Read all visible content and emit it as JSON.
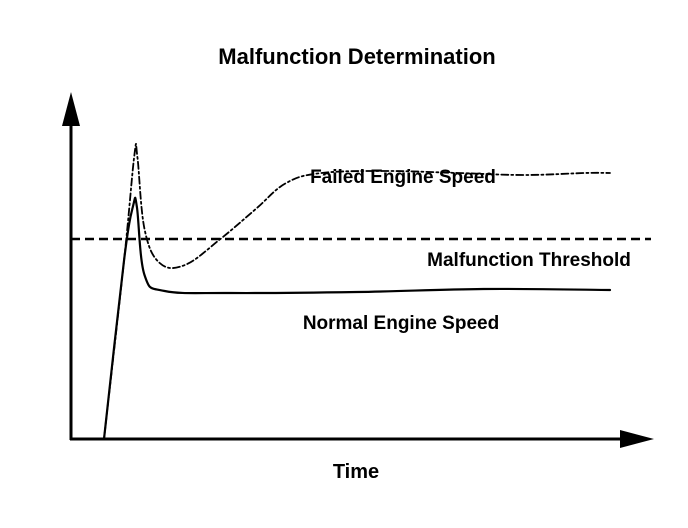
{
  "chart_data": {
    "type": "line",
    "title": "Malfunction Determination",
    "xlabel": "Time",
    "ylabel": "",
    "axis_ticks": false,
    "grid": false,
    "series": [
      {
        "name": "Failed Engine Speed",
        "style": "dash-dot",
        "color": "#000000",
        "points": [
          [
            0.0,
            0.0
          ],
          [
            0.04,
            0.9
          ],
          [
            0.06,
            1.42
          ],
          [
            0.066,
            1.41
          ],
          [
            0.08,
            1.05
          ],
          [
            0.11,
            0.88
          ],
          [
            0.16,
            0.87
          ],
          [
            0.23,
            1.0
          ],
          [
            0.3,
            1.15
          ],
          [
            0.36,
            1.28
          ],
          [
            0.43,
            1.33
          ],
          [
            0.56,
            1.34
          ],
          [
            0.7,
            1.33
          ],
          [
            0.83,
            1.32
          ],
          [
            0.95,
            1.33
          ],
          [
            1.0,
            1.33
          ]
        ]
      },
      {
        "name": "Normal Engine Speed",
        "style": "solid",
        "color": "#000000",
        "points": [
          [
            0.0,
            0.0
          ],
          [
            0.04,
            0.9
          ],
          [
            0.058,
            1.17
          ],
          [
            0.065,
            1.16
          ],
          [
            0.08,
            0.82
          ],
          [
            0.12,
            0.74
          ],
          [
            0.25,
            0.73
          ],
          [
            0.5,
            0.735
          ],
          [
            0.75,
            0.75
          ],
          [
            1.0,
            0.745
          ]
        ]
      }
    ],
    "threshold": {
      "name": "Malfunction Threshold",
      "style": "dashed",
      "value": 1.0
    },
    "annotations": [
      {
        "text": "Failed Engine Speed"
      },
      {
        "text": "Malfunction Threshold"
      },
      {
        "text": "Normal Engine Speed"
      }
    ]
  }
}
